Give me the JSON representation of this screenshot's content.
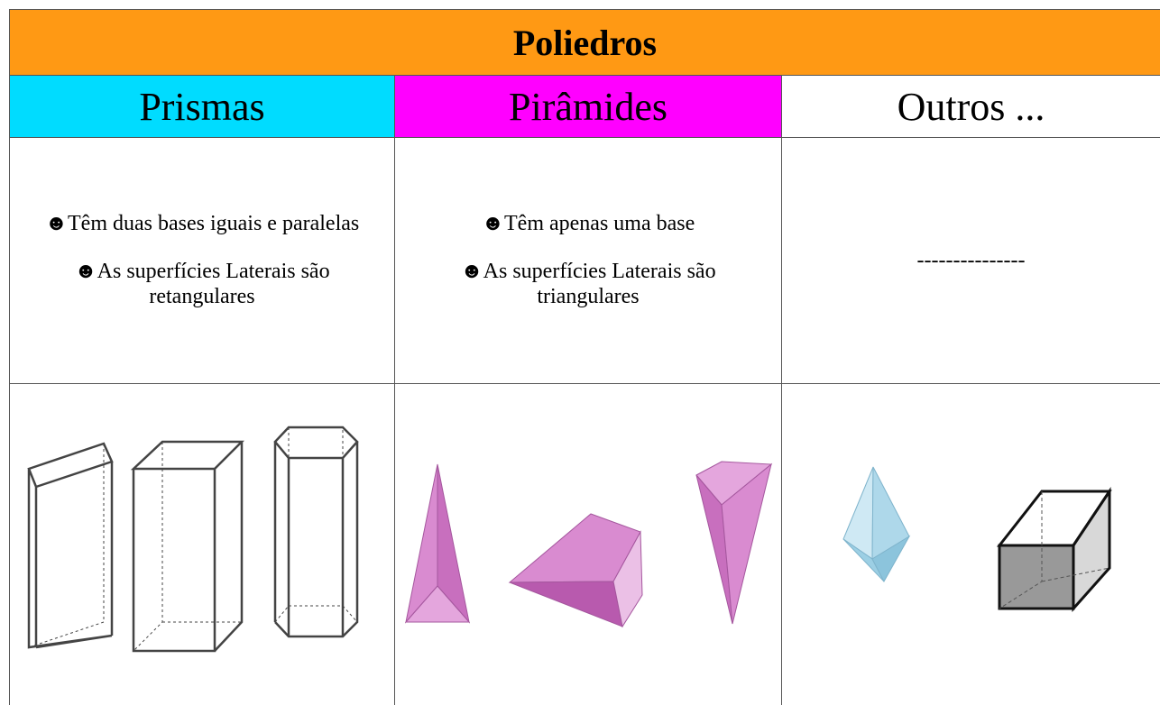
{
  "header": {
    "title": "Poliedros"
  },
  "columns": [
    {
      "title": "Prismas",
      "bullets": [
        "☻Têm duas bases iguais e paralelas",
        "☻As superfícies Laterais são retangulares"
      ]
    },
    {
      "title": "Pirâmides",
      "bullets": [
        "☻Têm apenas uma base",
        "☻As superfícies Laterais são triangulares"
      ]
    },
    {
      "title": "Outros ...",
      "text": "---------------"
    }
  ]
}
